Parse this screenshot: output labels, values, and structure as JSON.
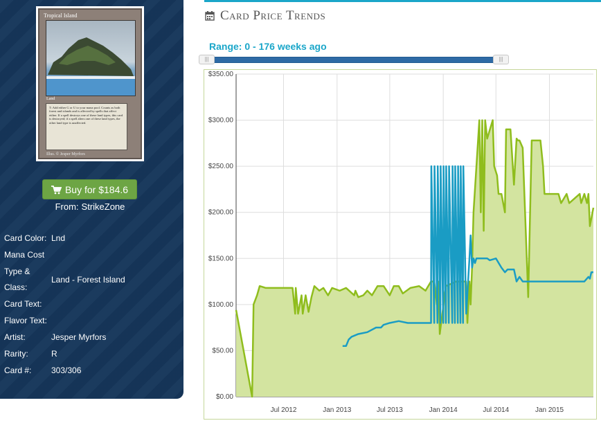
{
  "card": {
    "name": "Tropical Island",
    "type_line": "Land",
    "rules_text": "T: Add either G or U to your mana pool. Counts as both forest and islands and is affected by spells that affect either. If a spell destroys one of these land types, this card is destroyed; if a spell alters one of these land types, the other land type is unaffected.",
    "artist_line": "Illus. © Jesper Myrfors"
  },
  "buy": {
    "label": "Buy for $184.6",
    "icon": "shopping-cart-icon"
  },
  "from": {
    "label": "From:",
    "store": "StrikeZone"
  },
  "attributes": [
    {
      "label": "Card Color:",
      "value": "Lnd"
    },
    {
      "label": "Mana Cost",
      "value": ""
    },
    {
      "label": "Type &",
      "value": ""
    },
    {
      "label": "Class:",
      "value": ""
    },
    {
      "label": "Card Text:",
      "value": ""
    },
    {
      "label": "Flavor Text:",
      "value": ""
    },
    {
      "label": "Artist:",
      "value": "Jesper Myrfors"
    },
    {
      "label": "Rarity:",
      "value": "R"
    },
    {
      "label": "Card #:",
      "value": "303/306"
    }
  ],
  "type_class_value": "Land - Forest Island",
  "section": {
    "title": "Card Price Trends",
    "icon": "calendar-icon"
  },
  "range": {
    "label": "Range: 0 - 176 weeks ago",
    "min_weeks": 0,
    "max_weeks": 176
  },
  "colors": {
    "accent": "#1aa6c9",
    "panel": "#16365a",
    "buy": "#6da544",
    "green_series": "#8fbd1d",
    "green_fill": "#d3e4a0",
    "blue_series": "#1a9cc4"
  },
  "chart_data": {
    "type": "area",
    "title": "",
    "xlabel": "",
    "ylabel": "",
    "grid": true,
    "y_ticks": [
      "$0.00",
      "$50.00",
      "$100.00",
      "$150.00",
      "$200.00",
      "$250.00",
      "$300.00",
      "$350.00"
    ],
    "ylim": [
      0,
      350
    ],
    "x_ticks": [
      "Jul 2012",
      "Jan 2013",
      "Jul 2013",
      "Jan 2014",
      "Jul 2014",
      "Jan 2015"
    ],
    "x_tick_dates": [
      "2012-07-01",
      "2013-01-01",
      "2013-07-01",
      "2014-01-01",
      "2014-07-01",
      "2015-01-01"
    ],
    "x_range": [
      "2012-01-20",
      "2015-06-01"
    ],
    "series": [
      {
        "x": [
          "2012-01-20",
          "2012-03-15",
          "2012-03-20",
          "2012-04-01",
          "2012-04-10",
          "2012-05-01",
          "2012-06-01",
          "2012-07-10",
          "2012-08-01",
          "2012-08-10",
          "2012-08-12",
          "2012-08-20",
          "2012-09-01",
          "2012-09-05",
          "2012-09-15",
          "2012-09-25",
          "2012-10-05",
          "2012-10-15",
          "2012-11-01",
          "2012-11-15",
          "2012-12-01",
          "2012-12-15",
          "2013-01-10",
          "2013-02-01",
          "2013-03-01",
          "2013-03-05",
          "2013-03-15",
          "2013-04-01",
          "2013-04-15",
          "2013-05-01",
          "2013-05-20",
          "2013-06-10",
          "2013-07-01",
          "2013-07-15",
          "2013-08-01",
          "2013-08-15",
          "2013-09-10",
          "2013-10-10",
          "2013-11-01",
          "2013-11-20",
          "2013-12-01",
          "2013-12-10",
          "2013-12-15",
          "2013-12-20",
          "2014-01-10",
          "2014-02-15",
          "2014-03-20",
          "2014-03-25",
          "2014-04-01",
          "2014-04-05",
          "2014-04-10",
          "2014-04-15",
          "2014-05-05",
          "2014-05-10",
          "2014-05-15",
          "2014-05-20",
          "2014-05-25",
          "2014-06-01",
          "2014-06-20",
          "2014-06-25",
          "2014-07-05",
          "2014-07-10",
          "2014-07-20",
          "2014-08-01",
          "2014-08-05",
          "2014-08-20",
          "2014-09-01",
          "2014-09-10",
          "2014-09-15",
          "2014-09-20",
          "2014-10-01",
          "2014-10-20",
          "2014-11-01",
          "2014-11-15",
          "2014-12-01",
          "2014-12-10",
          "2014-12-15",
          "2015-01-01",
          "2015-02-01",
          "2015-02-10",
          "2015-03-01",
          "2015-03-10",
          "2015-04-15",
          "2015-04-20",
          "2015-05-01",
          "2015-05-10",
          "2015-05-15",
          "2015-05-20",
          "2015-06-01"
        ],
        "y": [
          94,
          0,
          100,
          110,
          120,
          118,
          118,
          118,
          118,
          90,
          118,
          90,
          110,
          90,
          110,
          92,
          108,
          120,
          115,
          118,
          110,
          118,
          115,
          118,
          110,
          115,
          108,
          110,
          115,
          110,
          120,
          120,
          110,
          120,
          120,
          112,
          118,
          120,
          115,
          125,
          125,
          100,
          125,
          68,
          120,
          125,
          125,
          80,
          125,
          100,
          140,
          200,
          300,
          200,
          300,
          180,
          300,
          280,
          300,
          250,
          240,
          220,
          220,
          200,
          290,
          290,
          230,
          280,
          278,
          278,
          270,
          108,
          278,
          278,
          278,
          250,
          220,
          220,
          220,
          210,
          220,
          210,
          220,
          210,
          220,
          210,
          220,
          185,
          205
        ],
        "color": "#8fbd1d",
        "fill": "#d3e4a0"
      },
      {
        "x": [
          "2013-01-20",
          "2013-02-01",
          "2013-02-10",
          "2013-02-20",
          "2013-03-15",
          "2013-04-15",
          "2013-05-15",
          "2013-06-01",
          "2013-06-10",
          "2013-07-01",
          "2013-08-01",
          "2013-09-01",
          "2013-10-01",
          "2013-10-15",
          "2013-11-01",
          "2013-11-20",
          "2013-11-21",
          "2013-12-01",
          "2013-12-02",
          "2013-12-12",
          "2013-12-13",
          "2013-12-22",
          "2013-12-23",
          "2014-01-01",
          "2014-01-02",
          "2014-01-10",
          "2014-01-11",
          "2014-01-20",
          "2014-01-21",
          "2014-02-01",
          "2014-02-02",
          "2014-02-10",
          "2014-02-11",
          "2014-02-20",
          "2014-02-21",
          "2014-03-01",
          "2014-03-02",
          "2014-03-10",
          "2014-03-11",
          "2014-03-20",
          "2014-03-21",
          "2014-04-01",
          "2014-04-05",
          "2014-04-10",
          "2014-04-15",
          "2014-04-20",
          "2014-04-25",
          "2014-05-01",
          "2014-05-10",
          "2014-06-01",
          "2014-06-10",
          "2014-07-01",
          "2014-07-20",
          "2014-08-01",
          "2014-08-10",
          "2014-09-01",
          "2014-09-10",
          "2014-09-20",
          "2014-10-01",
          "2014-11-01",
          "2014-12-01",
          "2015-01-01",
          "2015-02-01",
          "2015-03-01",
          "2015-04-01",
          "2015-05-01",
          "2015-05-15",
          "2015-05-20",
          "2015-05-25",
          "2015-06-01"
        ],
        "y": [
          55,
          55,
          62,
          65,
          68,
          70,
          75,
          75,
          78,
          80,
          82,
          80,
          80,
          80,
          80,
          80,
          250,
          80,
          250,
          80,
          250,
          80,
          250,
          80,
          250,
          80,
          250,
          80,
          250,
          80,
          250,
          80,
          250,
          80,
          250,
          80,
          250,
          80,
          250,
          100,
          90,
          150,
          175,
          140,
          150,
          145,
          150,
          150,
          150,
          150,
          148,
          150,
          140,
          135,
          138,
          138,
          125,
          130,
          125,
          125,
          125,
          125,
          125,
          125,
          125,
          125,
          130,
          128,
          135,
          135
        ],
        "color": "#1a9cc4",
        "fill": "none"
      }
    ]
  }
}
